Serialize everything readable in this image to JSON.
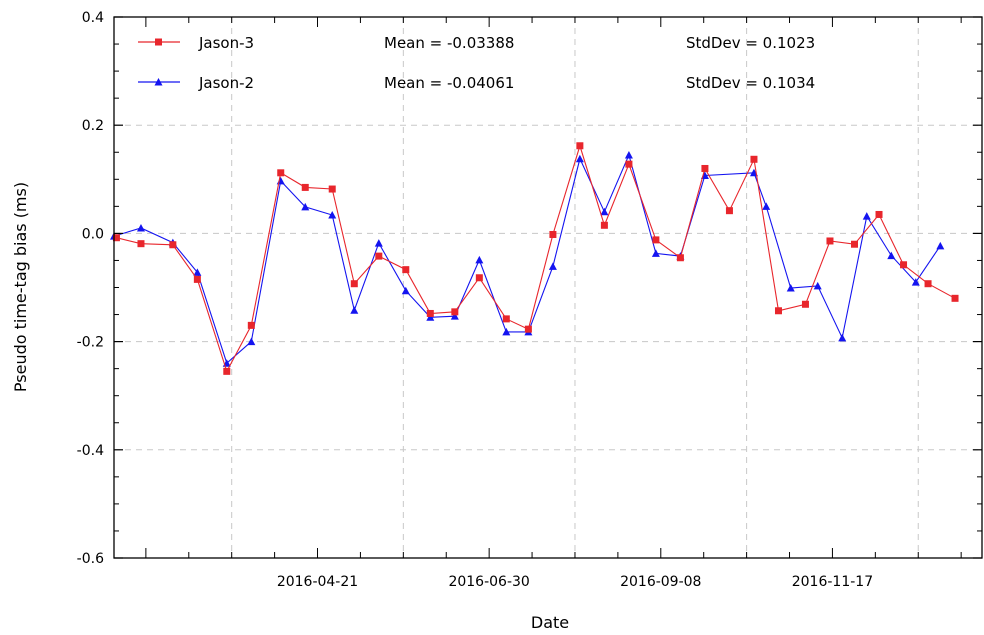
{
  "chart_data": {
    "type": "line",
    "xlabel": "Date",
    "ylabel": "Pseudo time-tag bias (ms)",
    "ylim": [
      -0.6,
      0.4
    ],
    "xlim": [
      "2016-01-29",
      "2017-01-17"
    ],
    "y_ticks": [
      "0.4",
      "0.2",
      "0.0",
      "-0.2",
      "-0.4",
      "-0.6"
    ],
    "x_ticks": [
      "2016-04-21",
      "2016-06-30",
      "2016-09-08",
      "2016-11-17"
    ],
    "grid": true,
    "legend_position": "top-left",
    "series": [
      {
        "name": "Jason-3",
        "color": "#e8262c",
        "marker": "square",
        "mean_label": "Mean = -0.03388",
        "stddev_label": "StdDev = 0.1023",
        "points": [
          [
            "2016-01-30",
            -0.008
          ],
          [
            "2016-02-09",
            -0.019
          ],
          [
            "2016-02-22",
            -0.021
          ],
          [
            "2016-03-03",
            -0.085
          ],
          [
            "2016-03-15",
            -0.255
          ],
          [
            "2016-03-25",
            -0.17
          ],
          [
            "2016-04-06",
            0.112
          ],
          [
            "2016-04-16",
            0.085
          ],
          [
            "2016-04-27",
            0.082
          ],
          [
            "2016-05-06",
            -0.093
          ],
          [
            "2016-05-16",
            -0.042
          ],
          [
            "2016-05-27",
            -0.067
          ],
          [
            "2016-06-06",
            -0.148
          ],
          [
            "2016-06-16",
            -0.145
          ],
          [
            "2016-06-26",
            -0.082
          ],
          [
            "2016-07-07",
            -0.158
          ],
          [
            "2016-07-16",
            -0.177
          ],
          [
            "2016-07-26",
            -0.002
          ],
          [
            "2016-08-06",
            0.162
          ],
          [
            "2016-08-16",
            0.015
          ],
          [
            "2016-08-26",
            0.128
          ],
          [
            "2016-09-06",
            -0.012
          ],
          [
            "2016-09-16",
            -0.045
          ],
          [
            "2016-09-26",
            0.12
          ],
          [
            "2016-10-06",
            0.042
          ],
          [
            "2016-10-16",
            0.137
          ],
          [
            "2016-10-26",
            -0.143
          ],
          [
            "2016-11-06",
            -0.131
          ],
          [
            "2016-11-16",
            -0.014
          ],
          [
            "2016-11-26",
            -0.02
          ],
          [
            "2016-12-06",
            0.035
          ],
          [
            "2016-12-16",
            -0.058
          ],
          [
            "2016-12-26",
            -0.093
          ],
          [
            "2017-01-06",
            -0.12
          ]
        ]
      },
      {
        "name": "Jason-2",
        "color": "#1414f0",
        "marker": "triangle",
        "mean_label": "Mean = -0.04061",
        "stddev_label": "StdDev = 0.1034",
        "points": [
          [
            "2016-01-29",
            -0.005
          ],
          [
            "2016-02-09",
            0.01
          ],
          [
            "2016-02-22",
            -0.017
          ],
          [
            "2016-03-03",
            -0.072
          ],
          [
            "2016-03-15",
            -0.24
          ],
          [
            "2016-03-25",
            -0.2
          ],
          [
            "2016-04-06",
            0.097
          ],
          [
            "2016-04-16",
            0.049
          ],
          [
            "2016-04-27",
            0.034
          ],
          [
            "2016-05-06",
            -0.142
          ],
          [
            "2016-05-16",
            -0.018
          ],
          [
            "2016-05-27",
            -0.106
          ],
          [
            "2016-06-06",
            -0.155
          ],
          [
            "2016-06-16",
            -0.153
          ],
          [
            "2016-06-26",
            -0.049
          ],
          [
            "2016-07-07",
            -0.182
          ],
          [
            "2016-07-16",
            -0.182
          ],
          [
            "2016-07-26",
            -0.061
          ],
          [
            "2016-08-06",
            0.138
          ],
          [
            "2016-08-16",
            0.04
          ],
          [
            "2016-08-26",
            0.145
          ],
          [
            "2016-09-06",
            -0.037
          ],
          [
            "2016-09-16",
            -0.042
          ],
          [
            "2016-09-26",
            0.107
          ],
          [
            "2016-10-16",
            0.112
          ],
          [
            "2016-10-21",
            0.05
          ],
          [
            "2016-10-31",
            -0.101
          ],
          [
            "2016-11-11",
            -0.097
          ],
          [
            "2016-11-21",
            -0.193
          ],
          [
            "2016-12-01",
            0.032
          ],
          [
            "2016-12-11",
            -0.041
          ],
          [
            "2016-12-21",
            -0.09
          ],
          [
            "2016-12-31",
            -0.023
          ]
        ]
      }
    ]
  }
}
